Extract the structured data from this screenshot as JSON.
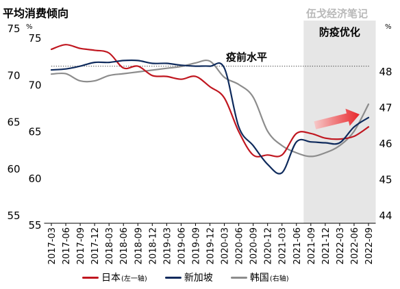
{
  "chart_data": {
    "type": "line",
    "title": "平均消费倾向",
    "watermark": "伍戈经济笔记",
    "unit_left": "%",
    "unit_right": "%",
    "inner_left_ticks": [
      "75",
      "70",
      "65",
      "60",
      "55"
    ],
    "left_axis": {
      "ticks": [
        75,
        70,
        65,
        60,
        55
      ],
      "range": [
        55,
        75
      ]
    },
    "right_axis": {
      "ticks": [
        48,
        47,
        46,
        45,
        44
      ],
      "range": [
        44,
        48
      ]
    },
    "reference_line": {
      "label": "疫前水平",
      "value": 71.0,
      "axis": "left",
      "style": "dotted"
    },
    "shaded_region": {
      "label": "防疫优化",
      "start": "2021-09",
      "end": "2022-09",
      "color": "#e6e6e6"
    },
    "arrow": {
      "start": "2021-09",
      "end": "2022-06",
      "color": "#e8262a"
    },
    "x": [
      "2017-03",
      "2017-06",
      "2017-09",
      "2017-12",
      "2018-03",
      "2018-06",
      "2018-09",
      "2018-12",
      "2019-03",
      "2019-06",
      "2019-09",
      "2019-12",
      "2020-03",
      "2020-06",
      "2020-09",
      "2020-12",
      "2021-03",
      "2021-06",
      "2021-09",
      "2021-12",
      "2022-03",
      "2022-06",
      "2022-09"
    ],
    "series": [
      {
        "name": "日本",
        "name_note": "(左一轴)",
        "axis": "left",
        "color": "#c0161f",
        "values": [
          72.8,
          73.3,
          72.9,
          72.7,
          72.4,
          70.8,
          71.0,
          70.0,
          69.9,
          69.6,
          69.9,
          68.8,
          67.6,
          64.0,
          61.5,
          61.5,
          61.5,
          63.8,
          63.8,
          63.3,
          63.2,
          63.5,
          64.5
        ]
      },
      {
        "name": "新加坡",
        "axis": "left",
        "color": "#0e2a5c",
        "values": [
          70.6,
          70.7,
          71.0,
          71.4,
          71.4,
          71.6,
          71.6,
          71.3,
          71.3,
          71.1,
          71.0,
          71.0,
          70.8,
          64.5,
          62.5,
          60.5,
          59.6,
          62.9,
          62.9,
          62.8,
          62.8,
          64.5,
          65.5
        ]
      },
      {
        "name": "韩国",
        "name_note": "(右轴)",
        "axis": "right",
        "color": "#8c8c8c",
        "values": [
          47.94,
          47.95,
          47.75,
          47.75,
          47.9,
          47.95,
          48.0,
          48.05,
          48.1,
          48.15,
          48.25,
          48.3,
          47.85,
          47.65,
          47.3,
          46.35,
          45.95,
          45.75,
          45.65,
          45.75,
          45.95,
          46.35,
          47.1
        ]
      }
    ]
  }
}
